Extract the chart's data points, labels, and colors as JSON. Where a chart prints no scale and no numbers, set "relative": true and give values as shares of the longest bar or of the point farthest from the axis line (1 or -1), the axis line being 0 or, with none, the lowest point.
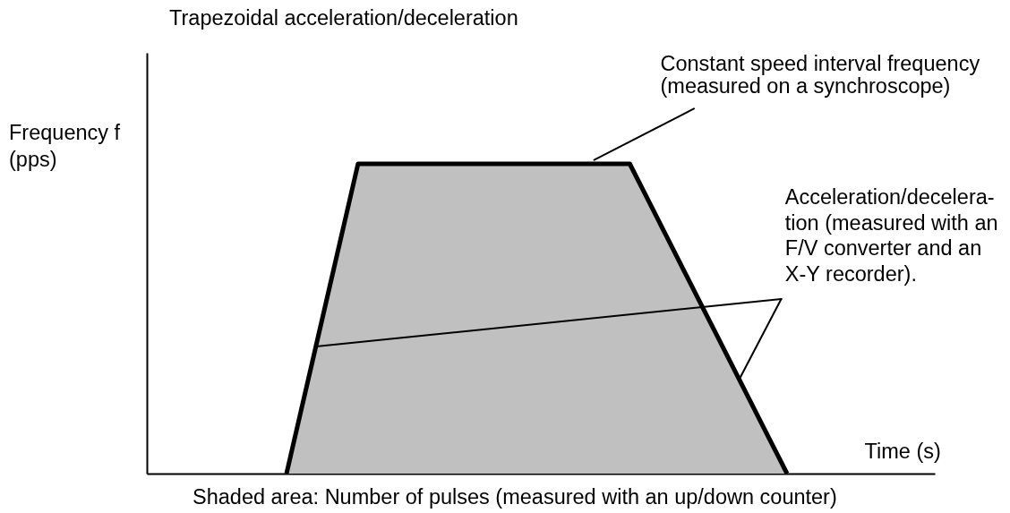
{
  "chart_data": {
    "type": "area",
    "title": "Trapezoidal acceleration/deceleration",
    "xlabel": "Time (s)",
    "annotations": [
      "Frequency f\n(pps)",
      "Constant speed interval frequency\n(measured on a synchroscope)",
      "Acceleration/decelera-\ntion (measured with an\nF/V converter and an\nX-Y recorder).",
      "Shaded area: Number of pulses (measured with an up/down counter)"
    ],
    "relative": true,
    "categories": [
      null,
      null,
      null,
      null,
      null,
      null,
      null,
      null,
      null,
      null,
      null,
      null,
      null,
      null,
      null,
      null,
      null,
      null,
      null,
      null,
      null,
      null,
      null,
      null,
      null,
      null,
      null,
      null,
      null,
      null,
      null,
      null,
      null,
      null,
      null,
      null
    ],
    "series": [
      {
        "color": "#c0c0c0",
        "values": [
          0,
          0.2,
          0.4,
          0.6,
          0.8,
          1,
          1,
          1,
          1,
          1,
          1,
          1,
          1,
          1,
          1,
          1,
          1,
          1,
          1,
          1,
          1,
          1,
          1,
          1,
          1,
          0.909,
          0.818,
          0.727,
          0.636,
          0.545,
          0.455,
          0.364,
          0.273,
          0.182,
          0.091,
          0
        ]
      }
    ]
  }
}
